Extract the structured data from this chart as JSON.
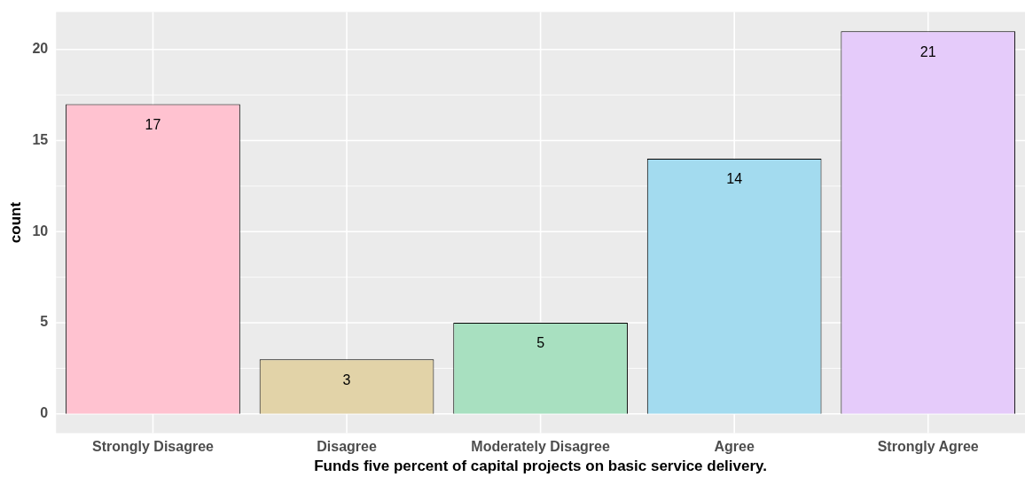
{
  "chart_data": {
    "type": "bar",
    "xlabel": "Funds five percent of capital projects on basic service delivery.",
    "ylabel": "count",
    "categories": [
      "Strongly Disagree",
      "Disagree",
      "Moderately Disagree",
      "Agree",
      "Strongly Agree"
    ],
    "values": [
      17,
      3,
      5,
      14,
      21
    ],
    "colors": [
      "#ffc2d0",
      "#e2d3a8",
      "#a8e0c0",
      "#a3dbef",
      "#e5cbfa"
    ],
    "ylim": [
      -1.05,
      22.05
    ],
    "yticks": [
      0,
      5,
      10,
      15,
      20
    ],
    "grid": true,
    "legend": false,
    "data_labels": true
  }
}
